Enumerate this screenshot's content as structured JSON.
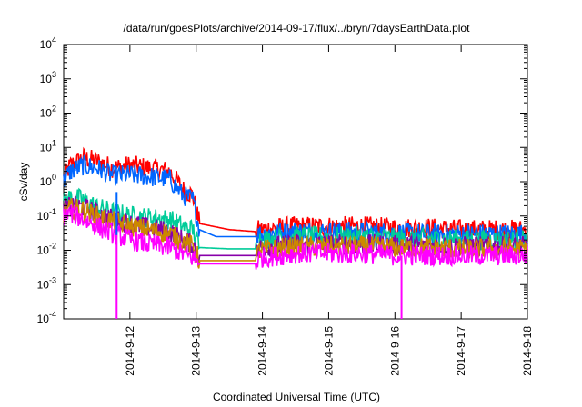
{
  "chart_data": {
    "type": "line",
    "title": "/data/run/goesPlots/archive/2014-09-17/flux/../bryn/7daysEarthData.plot",
    "xlabel": "Coordinated Universal Time (UTC)",
    "ylabel": "cSv/day",
    "y_scale": "log",
    "ylim_exponents": [
      -4,
      4
    ],
    "y_ticks": [
      {
        "base": "10",
        "exp": "-4"
      },
      {
        "base": "10",
        "exp": "-3"
      },
      {
        "base": "10",
        "exp": "-2"
      },
      {
        "base": "10",
        "exp": "-1"
      },
      {
        "base": "10",
        "exp": "0"
      },
      {
        "base": "10",
        "exp": "1"
      },
      {
        "base": "10",
        "exp": "2"
      },
      {
        "base": "10",
        "exp": "3"
      },
      {
        "base": "10",
        "exp": "4"
      }
    ],
    "x_range": [
      "2014-09-11",
      "2014-09-18"
    ],
    "x_ticks": [
      "2014-9-12",
      "2014-9-13",
      "2014-9-14",
      "2014-9-15",
      "2014-9-16",
      "2014-9-17",
      "2014-9-18"
    ],
    "grid": false,
    "legend": "none",
    "series": [
      {
        "color": "#ff0000",
        "x": [
          11.0,
          11.1,
          11.3,
          11.5,
          11.75,
          12.0,
          12.3,
          12.6,
          12.8,
          12.95,
          13.05,
          13.5,
          13.9,
          13.95,
          14.5,
          15.0,
          15.5,
          16.0,
          16.5,
          17.0,
          17.5,
          18.0
        ],
        "y": [
          1.3,
          3.0,
          5.0,
          4.0,
          2.5,
          3.0,
          2.5,
          2.0,
          0.6,
          0.4,
          0.06,
          0.04,
          0.035,
          0.04,
          0.05,
          0.05,
          0.05,
          0.045,
          0.045,
          0.04,
          0.04,
          0.04
        ]
      },
      {
        "color": "#0066ff",
        "x": [
          11.0,
          11.1,
          11.3,
          11.5,
          11.75,
          12.0,
          12.3,
          12.6,
          12.8,
          12.95,
          13.05,
          13.3,
          13.9,
          13.95,
          14.5,
          15.0,
          15.5,
          16.0,
          16.5,
          17.0,
          17.5,
          18.0
        ],
        "y": [
          1.0,
          2.0,
          3.0,
          2.5,
          1.5,
          1.6,
          1.4,
          1.2,
          0.4,
          0.3,
          0.04,
          0.025,
          0.025,
          0.03,
          0.035,
          0.035,
          0.035,
          0.032,
          0.03,
          0.03,
          0.03,
          0.03
        ]
      },
      {
        "color": "#00cc99",
        "x": [
          11.0,
          11.1,
          11.3,
          11.5,
          11.75,
          12.0,
          12.3,
          12.6,
          12.8,
          12.95,
          13.05,
          13.5,
          13.9,
          13.95,
          14.5,
          15.0,
          15.5,
          16.0,
          16.5,
          17.0,
          17.5,
          18.0
        ],
        "y": [
          0.25,
          0.35,
          0.3,
          0.18,
          0.13,
          0.1,
          0.09,
          0.08,
          0.05,
          0.04,
          0.012,
          0.011,
          0.011,
          0.02,
          0.025,
          0.025,
          0.025,
          0.022,
          0.022,
          0.02,
          0.02,
          0.02
        ]
      },
      {
        "color": "#8800aa",
        "x": [
          11.0,
          11.1,
          11.3,
          11.5,
          11.75,
          12.0,
          12.3,
          12.6,
          12.8,
          12.95,
          13.05,
          13.5,
          13.9,
          13.95,
          14.5,
          15.0,
          15.5,
          16.0,
          16.5,
          17.0,
          17.5,
          18.0
        ],
        "y": [
          0.15,
          0.2,
          0.18,
          0.12,
          0.08,
          0.06,
          0.045,
          0.035,
          0.02,
          0.015,
          0.007,
          0.007,
          0.007,
          0.012,
          0.015,
          0.015,
          0.015,
          0.014,
          0.014,
          0.013,
          0.013,
          0.013
        ]
      },
      {
        "color": "#cc8800",
        "x": [
          11.0,
          11.1,
          11.3,
          11.5,
          11.75,
          12.0,
          12.3,
          12.6,
          12.8,
          12.95,
          13.05,
          13.5,
          13.9,
          13.95,
          14.5,
          15.0,
          15.5,
          16.0,
          16.5,
          17.0,
          17.5,
          18.0
        ],
        "y": [
          0.12,
          0.17,
          0.15,
          0.1,
          0.07,
          0.05,
          0.04,
          0.03,
          0.018,
          0.013,
          0.005,
          0.005,
          0.005,
          0.01,
          0.013,
          0.013,
          0.013,
          0.012,
          0.012,
          0.011,
          0.011,
          0.011
        ]
      },
      {
        "color": "#ff00ff",
        "x": [
          11.0,
          11.1,
          11.3,
          11.5,
          11.75,
          12.0,
          12.3,
          12.6,
          12.8,
          12.95,
          13.05,
          13.5,
          13.9,
          13.95,
          14.5,
          15.0,
          15.5,
          16.0,
          16.5,
          17.0,
          17.5,
          18.0
        ],
        "y": [
          0.09,
          0.12,
          0.08,
          0.05,
          0.03,
          0.02,
          0.015,
          0.012,
          0.008,
          0.006,
          0.004,
          0.004,
          0.004,
          0.006,
          0.008,
          0.008,
          0.008,
          0.007,
          0.007,
          0.007,
          0.007,
          0.007
        ]
      }
    ],
    "dips": [
      {
        "color": "#ff00ff",
        "x": 11.8,
        "y": 0.0001
      },
      {
        "color": "#0066ff",
        "x": 11.8,
        "y": 0.5
      },
      {
        "color": "#ff00ff",
        "x": 16.1,
        "y": 0.0001
      }
    ]
  }
}
